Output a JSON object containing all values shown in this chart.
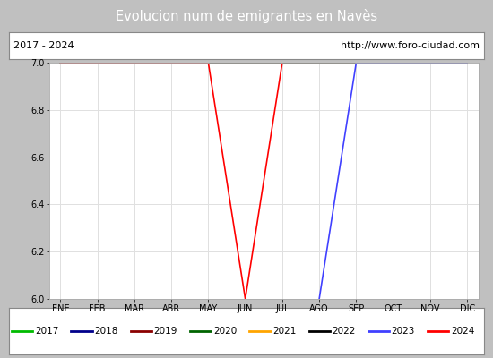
{
  "title": "Evolucion num de emigrantes en Navès",
  "title_bg_color": "#4f81bd",
  "title_text_color": "#ffffff",
  "subtitle_left": "2017 - 2024",
  "subtitle_right": "http://www.foro-ciudad.com",
  "outer_bg_color": "#c0c0c0",
  "plot_bg_color": "#f0f0f0",
  "inner_bg_color": "#ffffff",
  "ylim": [
    6.0,
    7.0
  ],
  "yticks": [
    6.0,
    6.2,
    6.4,
    6.6,
    6.8,
    7.0
  ],
  "x_months": [
    "ENE",
    "FEB",
    "MAR",
    "ABR",
    "MAY",
    "JUN",
    "JUL",
    "AGO",
    "SEP",
    "OCT",
    "NOV",
    "DIC"
  ],
  "series": {
    "2017": {
      "color": "#00bb00",
      "data": [
        7,
        7,
        7,
        7,
        7,
        7,
        7,
        7,
        7,
        7,
        7,
        7
      ]
    },
    "2018": {
      "color": "#00008b",
      "data": [
        7,
        7,
        7,
        7,
        7,
        7,
        7,
        7,
        7,
        7,
        7,
        7
      ]
    },
    "2019": {
      "color": "#8b0000",
      "data": [
        7,
        7,
        7,
        7,
        7,
        7,
        7,
        7,
        7,
        7,
        7,
        7
      ]
    },
    "2020": {
      "color": "#006400",
      "data": [
        7,
        7,
        7,
        7,
        7,
        7,
        7,
        7,
        7,
        7,
        7,
        7
      ]
    },
    "2021": {
      "color": "#ffa500",
      "data": [
        7,
        7,
        7,
        7,
        7,
        7,
        7,
        7,
        7,
        7,
        7,
        7
      ]
    },
    "2022": {
      "color": "#000000",
      "data": [
        7,
        7,
        7,
        7,
        7,
        7,
        7,
        7,
        7,
        7,
        7,
        7
      ]
    },
    "2023": {
      "color": "#4040ff",
      "data": [
        null,
        null,
        null,
        null,
        null,
        null,
        null,
        6,
        7,
        7,
        7,
        7
      ]
    },
    "2024": {
      "color": "#ff0000",
      "data": [
        7,
        7,
        7,
        7,
        7,
        6,
        7,
        null,
        null,
        null,
        null,
        null
      ]
    }
  },
  "legend_order": [
    "2017",
    "2018",
    "2019",
    "2020",
    "2021",
    "2022",
    "2023",
    "2024"
  ]
}
